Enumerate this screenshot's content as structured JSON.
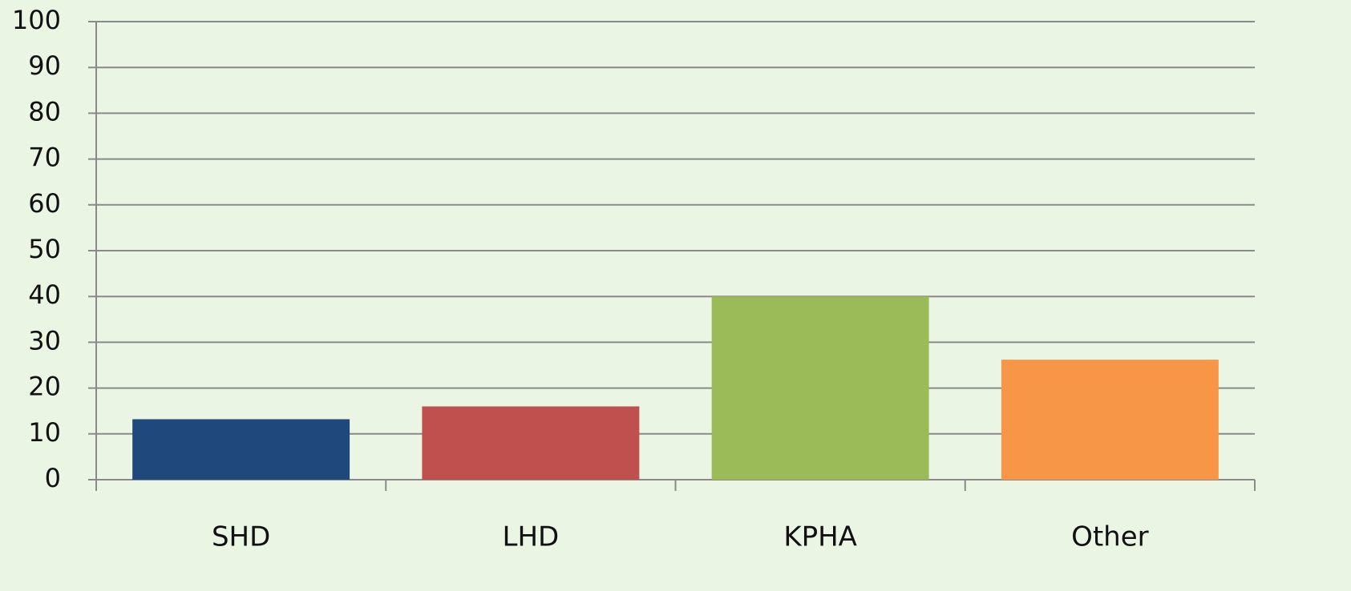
{
  "chart_data": {
    "type": "bar",
    "categories": [
      "SHD",
      "LHD",
      "KPHA",
      "Other"
    ],
    "values": [
      13.2,
      16,
      40,
      26.2
    ],
    "colors": [
      "#1f497d",
      "#c0504d",
      "#9bbb59",
      "#f79646"
    ],
    "ylim": [
      0,
      100
    ],
    "yticks": [
      0,
      10,
      20,
      30,
      40,
      50,
      60,
      70,
      80,
      90,
      100
    ],
    "grid": true
  }
}
